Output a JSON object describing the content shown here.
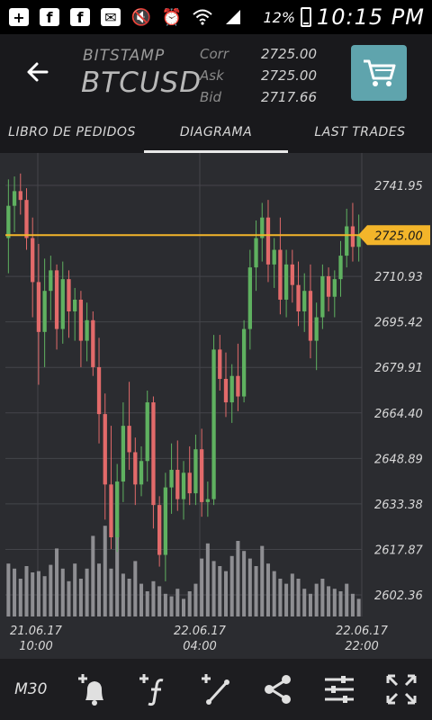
{
  "status_bar": {
    "icons": [
      "plus-box-icon",
      "facebook-icon",
      "facebook-icon",
      "mail-icon",
      "mute-icon",
      "alarm-icon",
      "wifi-icon",
      "signal-icon"
    ],
    "battery": "12%",
    "time": "10:15 PM"
  },
  "header": {
    "exchange": "BITSTAMP",
    "pair": "BTCUSD",
    "quotes": [
      {
        "label": "Corr",
        "value": "2725.00"
      },
      {
        "label": "Ask",
        "value": "2725.00"
      },
      {
        "label": "Bid",
        "value": "2717.66"
      }
    ]
  },
  "tabs": [
    {
      "label": "LIBRO DE PEDIDOS",
      "active": false
    },
    {
      "label": "DIAGRAMA",
      "active": true
    },
    {
      "label": "LAST TRADES",
      "active": false
    }
  ],
  "chart_data": {
    "type": "candlestick",
    "timeframe": "M30",
    "y_ticks": [
      "2741.95",
      "2710.93",
      "2695.42",
      "2679.91",
      "2664.40",
      "2648.89",
      "2633.38",
      "2617.87",
      "2602.36"
    ],
    "ylim": [
      2595,
      2753
    ],
    "current_price": "2725.00",
    "x_ticks": [
      {
        "date": "21.06.17",
        "time": "10:00"
      },
      {
        "date": "22.06.17",
        "time": "04:00"
      },
      {
        "date": "22.06.17",
        "time": "22:00"
      }
    ],
    "colors": {
      "up": "#5fb160",
      "down": "#e26a6a",
      "volume": "#8e8e92",
      "price_line": "#f3b52a",
      "grid": "#44454a"
    },
    "candles": [
      {
        "o": 2724,
        "h": 2744,
        "l": 2712,
        "c": 2735
      },
      {
        "o": 2735,
        "h": 2745,
        "l": 2726,
        "c": 2740
      },
      {
        "o": 2740,
        "h": 2746,
        "l": 2732,
        "c": 2737
      },
      {
        "o": 2737,
        "h": 2741,
        "l": 2720,
        "c": 2724
      },
      {
        "o": 2724,
        "h": 2731,
        "l": 2697,
        "c": 2709
      },
      {
        "o": 2709,
        "h": 2722,
        "l": 2674,
        "c": 2692
      },
      {
        "o": 2692,
        "h": 2717,
        "l": 2680,
        "c": 2706
      },
      {
        "o": 2706,
        "h": 2718,
        "l": 2696,
        "c": 2713
      },
      {
        "o": 2713,
        "h": 2715,
        "l": 2686,
        "c": 2693
      },
      {
        "o": 2693,
        "h": 2716,
        "l": 2688,
        "c": 2710
      },
      {
        "o": 2710,
        "h": 2713,
        "l": 2690,
        "c": 2699
      },
      {
        "o": 2699,
        "h": 2707,
        "l": 2689,
        "c": 2703
      },
      {
        "o": 2703,
        "h": 2706,
        "l": 2680,
        "c": 2689
      },
      {
        "o": 2689,
        "h": 2702,
        "l": 2682,
        "c": 2696
      },
      {
        "o": 2696,
        "h": 2699,
        "l": 2677,
        "c": 2680
      },
      {
        "o": 2680,
        "h": 2690,
        "l": 2654,
        "c": 2664
      },
      {
        "o": 2664,
        "h": 2671,
        "l": 2628,
        "c": 2640
      },
      {
        "o": 2640,
        "h": 2660,
        "l": 2618,
        "c": 2622
      },
      {
        "o": 2622,
        "h": 2647,
        "l": 2617,
        "c": 2641
      },
      {
        "o": 2641,
        "h": 2668,
        "l": 2634,
        "c": 2660
      },
      {
        "o": 2660,
        "h": 2675,
        "l": 2645,
        "c": 2651
      },
      {
        "o": 2651,
        "h": 2656,
        "l": 2633,
        "c": 2640
      },
      {
        "o": 2640,
        "h": 2653,
        "l": 2636,
        "c": 2648
      },
      {
        "o": 2648,
        "h": 2672,
        "l": 2641,
        "c": 2668
      },
      {
        "o": 2668,
        "h": 2670,
        "l": 2625,
        "c": 2633
      },
      {
        "o": 2633,
        "h": 2636,
        "l": 2612,
        "c": 2616
      },
      {
        "o": 2616,
        "h": 2644,
        "l": 2607,
        "c": 2639
      },
      {
        "o": 2639,
        "h": 2654,
        "l": 2630,
        "c": 2645
      },
      {
        "o": 2645,
        "h": 2655,
        "l": 2631,
        "c": 2635
      },
      {
        "o": 2635,
        "h": 2648,
        "l": 2628,
        "c": 2644
      },
      {
        "o": 2644,
        "h": 2653,
        "l": 2633,
        "c": 2637
      },
      {
        "o": 2637,
        "h": 2657,
        "l": 2633,
        "c": 2652
      },
      {
        "o": 2652,
        "h": 2659,
        "l": 2629,
        "c": 2634
      },
      {
        "o": 2634,
        "h": 2641,
        "l": 2629,
        "c": 2635
      },
      {
        "o": 2635,
        "h": 2691,
        "l": 2633,
        "c": 2686
      },
      {
        "o": 2686,
        "h": 2691,
        "l": 2672,
        "c": 2676
      },
      {
        "o": 2676,
        "h": 2685,
        "l": 2663,
        "c": 2668
      },
      {
        "o": 2668,
        "h": 2681,
        "l": 2661,
        "c": 2677
      },
      {
        "o": 2677,
        "h": 2688,
        "l": 2665,
        "c": 2670
      },
      {
        "o": 2670,
        "h": 2696,
        "l": 2668,
        "c": 2693
      },
      {
        "o": 2693,
        "h": 2720,
        "l": 2686,
        "c": 2714
      },
      {
        "o": 2714,
        "h": 2730,
        "l": 2706,
        "c": 2724
      },
      {
        "o": 2724,
        "h": 2736,
        "l": 2716,
        "c": 2731
      },
      {
        "o": 2731,
        "h": 2737,
        "l": 2709,
        "c": 2715
      },
      {
        "o": 2715,
        "h": 2724,
        "l": 2707,
        "c": 2720
      },
      {
        "o": 2720,
        "h": 2731,
        "l": 2698,
        "c": 2703
      },
      {
        "o": 2703,
        "h": 2720,
        "l": 2697,
        "c": 2715
      },
      {
        "o": 2715,
        "h": 2720,
        "l": 2702,
        "c": 2708
      },
      {
        "o": 2708,
        "h": 2716,
        "l": 2694,
        "c": 2699
      },
      {
        "o": 2699,
        "h": 2712,
        "l": 2692,
        "c": 2706
      },
      {
        "o": 2706,
        "h": 2715,
        "l": 2683,
        "c": 2689
      },
      {
        "o": 2689,
        "h": 2702,
        "l": 2679,
        "c": 2697
      },
      {
        "o": 2697,
        "h": 2715,
        "l": 2693,
        "c": 2711
      },
      {
        "o": 2711,
        "h": 2714,
        "l": 2699,
        "c": 2704
      },
      {
        "o": 2704,
        "h": 2713,
        "l": 2697,
        "c": 2710
      },
      {
        "o": 2710,
        "h": 2723,
        "l": 2704,
        "c": 2718
      },
      {
        "o": 2718,
        "h": 2734,
        "l": 2714,
        "c": 2728
      },
      {
        "o": 2728,
        "h": 2736,
        "l": 2716,
        "c": 2721
      },
      {
        "o": 2721,
        "h": 2732,
        "l": 2716,
        "c": 2725
      }
    ],
    "volumes": [
      0.42,
      0.38,
      0.3,
      0.4,
      0.35,
      0.36,
      0.32,
      0.41,
      0.54,
      0.38,
      0.28,
      0.42,
      0.3,
      0.38,
      0.64,
      0.42,
      0.72,
      0.38,
      0.7,
      0.34,
      0.3,
      0.44,
      0.26,
      0.2,
      0.28,
      0.24,
      0.18,
      0.16,
      0.22,
      0.14,
      0.2,
      0.26,
      0.46,
      0.58,
      0.44,
      0.4,
      0.36,
      0.48,
      0.6,
      0.52,
      0.46,
      0.4,
      0.56,
      0.42,
      0.36,
      0.3,
      0.26,
      0.34,
      0.3,
      0.22,
      0.18,
      0.26,
      0.3,
      0.24,
      0.22,
      0.2,
      0.26,
      0.18,
      0.14
    ]
  },
  "toolbar": {
    "timeframe_label": "M30",
    "buttons": [
      "add-alert-icon",
      "add-indicator-icon",
      "add-line-icon",
      "share-icon",
      "settings-sliders-icon",
      "fullscreen-icon"
    ]
  }
}
